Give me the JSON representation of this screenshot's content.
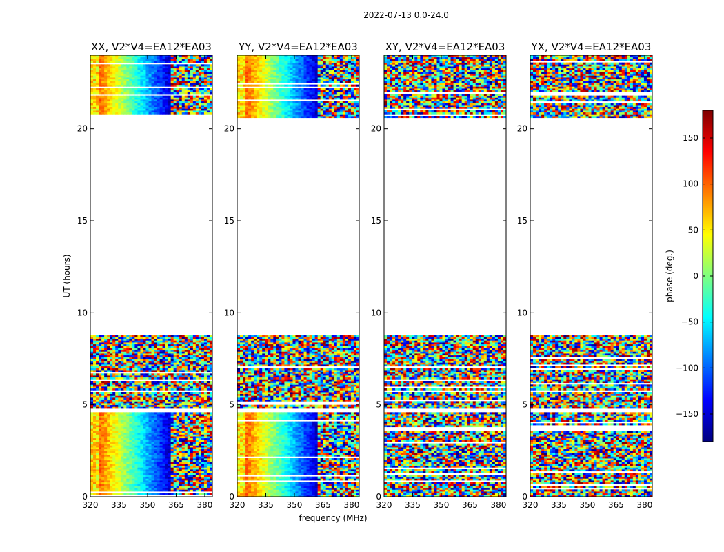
{
  "chart_data": {
    "type": "heatmap",
    "suptitle": "2022-07-13 0.0-24.0",
    "xlabel": "frequency (MHz)",
    "ylabel": "UT (hours)",
    "xlim": [
      320,
      384
    ],
    "ylim": [
      0,
      24
    ],
    "x_ticks": [
      320,
      335,
      350,
      365,
      380
    ],
    "x_tick_labels": [
      "320",
      "335",
      "350",
      "365",
      "380"
    ],
    "y_ticks": [
      0,
      5,
      10,
      15,
      20
    ],
    "y_tick_labels": [
      "0",
      "5",
      "10",
      "15",
      "20"
    ],
    "colorbar": {
      "label": "phase (deg.)",
      "range": [
        -180,
        180
      ],
      "ticks": [
        150,
        100,
        50,
        0,
        -50,
        -100,
        -150
      ],
      "tick_labels": [
        "150",
        "100",
        "50",
        "0",
        "−50",
        "−100",
        "−150"
      ],
      "colormap": [
        "#00007f",
        "#0000ff",
        "#007fff",
        "#00ffff",
        "#7fff7f",
        "#ffff00",
        "#ff7f00",
        "#ff0000",
        "#7f0000"
      ]
    },
    "data_time_ranges_hours": [
      [
        0,
        4.6
      ],
      [
        4.8,
        8.8
      ],
      [
        20.6,
        24
      ]
    ],
    "panels": [
      {
        "title": "XX, V2*V4=EA12*EA03",
        "pattern": "smooth"
      },
      {
        "title": "YY, V2*V4=EA12*EA03",
        "pattern": "smooth"
      },
      {
        "title": "XY, V2*V4=EA12*EA03",
        "pattern": "noisy"
      },
      {
        "title": "YX, V2*V4=EA12*EA03",
        "pattern": "noisy"
      }
    ]
  }
}
